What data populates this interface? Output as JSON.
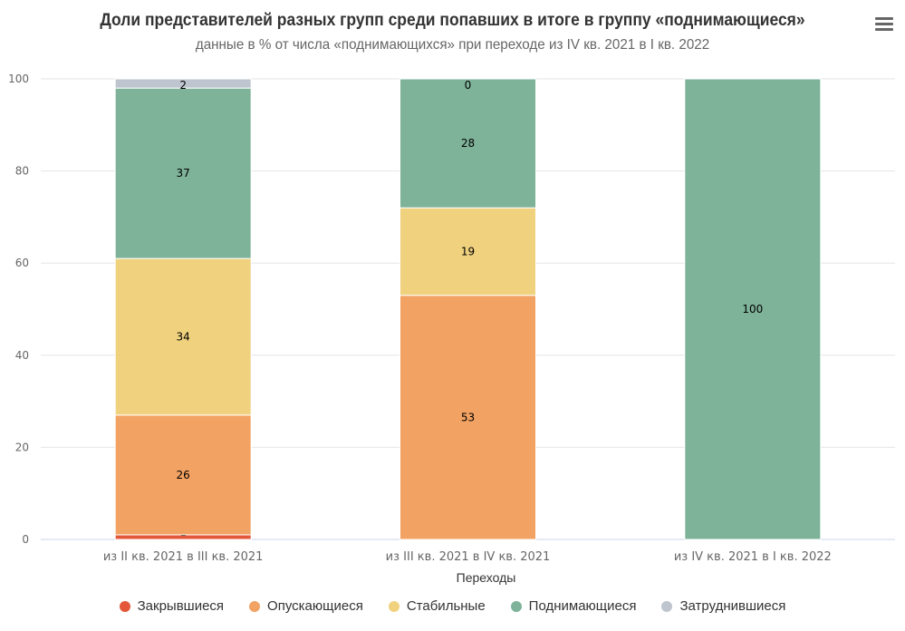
{
  "chart_data": {
    "type": "bar",
    "stacked": true,
    "title": "Доли представителей разных групп среди попавших в итоге в группу «поднимающиеся»",
    "subtitle": "данные в % от числа «поднимающихся» при переходе из IV кв. 2021 в I кв. 2022",
    "xlabel": "Переходы",
    "ylabel": "",
    "ylim": [
      0,
      100
    ],
    "yticks": [
      "0",
      "20",
      "40",
      "60",
      "80",
      "100"
    ],
    "grid": true,
    "legend_position": "bottom",
    "categories": [
      "из II кв. 2021 в III кв. 2021",
      "из III кв. 2021 в IV кв. 2021",
      "из IV кв. 2021 в I кв. 2022"
    ],
    "series": [
      {
        "name": "Закрывшиеся",
        "color": "#e4573a",
        "values": [
          1,
          0,
          0
        ],
        "labels": [
          "1",
          null,
          null
        ]
      },
      {
        "name": "Опускающиеся",
        "color": "#f2a262",
        "values": [
          26,
          53,
          0
        ],
        "labels": [
          "26",
          "53",
          null
        ]
      },
      {
        "name": "Стабильные",
        "color": "#f0d17e",
        "values": [
          34,
          19,
          0
        ],
        "labels": [
          "34",
          "19",
          null
        ]
      },
      {
        "name": "Поднимающиеся",
        "color": "#7eb399",
        "values": [
          37,
          28,
          100
        ],
        "labels": [
          "37",
          "28",
          "100"
        ]
      },
      {
        "name": "Затруднившиеся",
        "color": "#bfc5ce",
        "values": [
          2,
          0,
          0
        ],
        "labels": [
          "2",
          "0",
          null
        ]
      }
    ]
  },
  "menu_icon": "hamburger-menu-icon"
}
